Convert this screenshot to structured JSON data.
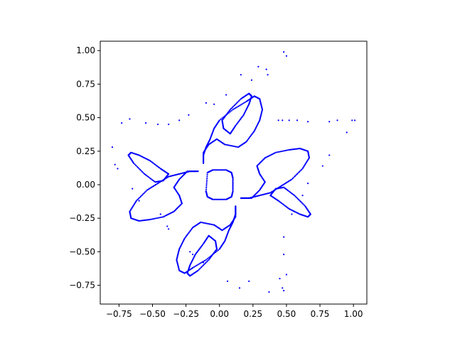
{
  "chart_data": {
    "type": "scatter",
    "title": "",
    "xlabel": "",
    "ylabel": "",
    "xlim": [
      -0.89,
      1.1
    ],
    "ylim": [
      -0.89,
      1.07
    ],
    "grid": false,
    "legend": "none",
    "marker_color": "#0000ff",
    "x_ticks": [
      -0.75,
      -0.5,
      -0.25,
      0.0,
      0.25,
      0.5,
      0.75,
      1.0
    ],
    "x_tick_labels": [
      "−0.75",
      "−0.50",
      "−0.25",
      "0.00",
      "0.25",
      "0.50",
      "0.75",
      "1.00"
    ],
    "y_ticks": [
      -0.75,
      -0.5,
      -0.25,
      0.0,
      0.25,
      0.5,
      0.75,
      1.0
    ],
    "y_tick_labels": [
      "−0.75",
      "−0.50",
      "−0.25",
      "0.00",
      "0.25",
      "0.50",
      "0.75",
      "1.00"
    ],
    "curves": [
      {
        "kind": "loop",
        "points": [
          [
            -0.1,
            -0.05
          ],
          [
            -0.09,
            0.09
          ],
          [
            -0.05,
            0.11
          ],
          [
            0.05,
            0.11
          ],
          [
            0.09,
            0.09
          ],
          [
            0.1,
            0.05
          ],
          [
            0.1,
            -0.05
          ],
          [
            0.09,
            -0.09
          ],
          [
            0.05,
            -0.11
          ],
          [
            -0.05,
            -0.11
          ],
          [
            -0.09,
            -0.09
          ],
          [
            -0.1,
            -0.05
          ]
        ]
      },
      {
        "kind": "loop",
        "points": [
          [
            -0.12,
            0.16
          ],
          [
            -0.12,
            0.24
          ],
          [
            -0.08,
            0.3
          ],
          [
            -0.02,
            0.34
          ],
          [
            0.04,
            0.3
          ],
          [
            0.14,
            0.28
          ],
          [
            0.2,
            0.32
          ],
          [
            0.26,
            0.4
          ],
          [
            0.3,
            0.48
          ],
          [
            0.32,
            0.56
          ],
          [
            0.3,
            0.64
          ],
          [
            0.26,
            0.66
          ],
          [
            0.2,
            0.62
          ],
          [
            0.1,
            0.56
          ],
          [
            0.0,
            0.48
          ],
          [
            -0.04,
            0.42
          ],
          [
            -0.07,
            0.34
          ],
          [
            -0.1,
            0.28
          ],
          [
            -0.12,
            0.22
          ]
        ]
      },
      {
        "kind": "loop",
        "points": [
          [
            0.16,
            -0.1
          ],
          [
            0.24,
            -0.1
          ],
          [
            0.3,
            -0.04
          ],
          [
            0.34,
            0.02
          ],
          [
            0.3,
            0.08
          ],
          [
            0.28,
            0.14
          ],
          [
            0.34,
            0.2
          ],
          [
            0.42,
            0.24
          ],
          [
            0.52,
            0.26
          ],
          [
            0.6,
            0.27
          ],
          [
            0.66,
            0.25
          ],
          [
            0.67,
            0.2
          ],
          [
            0.62,
            0.12
          ],
          [
            0.54,
            0.04
          ],
          [
            0.46,
            -0.01
          ],
          [
            0.38,
            -0.06
          ],
          [
            0.3,
            -0.08
          ],
          [
            0.22,
            -0.1
          ]
        ]
      },
      {
        "kind": "loop",
        "points": [
          [
            0.12,
            -0.16
          ],
          [
            0.12,
            -0.24
          ],
          [
            0.08,
            -0.3
          ],
          [
            0.02,
            -0.34
          ],
          [
            -0.04,
            -0.3
          ],
          [
            -0.14,
            -0.28
          ],
          [
            -0.2,
            -0.32
          ],
          [
            -0.26,
            -0.4
          ],
          [
            -0.3,
            -0.48
          ],
          [
            -0.32,
            -0.56
          ],
          [
            -0.3,
            -0.64
          ],
          [
            -0.26,
            -0.66
          ],
          [
            -0.2,
            -0.62
          ],
          [
            -0.1,
            -0.56
          ],
          [
            0.0,
            -0.48
          ],
          [
            0.04,
            -0.42
          ],
          [
            0.07,
            -0.34
          ],
          [
            0.1,
            -0.28
          ],
          [
            0.12,
            -0.22
          ]
        ]
      },
      {
        "kind": "loop",
        "points": [
          [
            -0.16,
            0.1
          ],
          [
            -0.24,
            0.1
          ],
          [
            -0.3,
            0.04
          ],
          [
            -0.34,
            -0.02
          ],
          [
            -0.3,
            -0.08
          ],
          [
            -0.28,
            -0.14
          ],
          [
            -0.34,
            -0.2
          ],
          [
            -0.42,
            -0.24
          ],
          [
            -0.52,
            -0.26
          ],
          [
            -0.6,
            -0.27
          ],
          [
            -0.66,
            -0.25
          ],
          [
            -0.67,
            -0.2
          ],
          [
            -0.62,
            -0.12
          ],
          [
            -0.54,
            -0.04
          ],
          [
            -0.46,
            0.01
          ],
          [
            -0.38,
            0.06
          ],
          [
            -0.3,
            0.08
          ],
          [
            -0.22,
            0.1
          ]
        ]
      },
      {
        "kind": "loop",
        "points": [
          [
            0.08,
            0.38
          ],
          [
            0.12,
            0.44
          ],
          [
            0.18,
            0.52
          ],
          [
            0.22,
            0.6
          ],
          [
            0.24,
            0.66
          ],
          [
            0.22,
            0.68
          ],
          [
            0.16,
            0.64
          ],
          [
            0.08,
            0.56
          ],
          [
            0.02,
            0.48
          ],
          [
            0.03,
            0.42
          ]
        ]
      },
      {
        "kind": "loop",
        "points": [
          [
            0.38,
            -0.08
          ],
          [
            0.44,
            -0.12
          ],
          [
            0.52,
            -0.18
          ],
          [
            0.6,
            -0.22
          ],
          [
            0.66,
            -0.24
          ],
          [
            0.68,
            -0.22
          ],
          [
            0.64,
            -0.16
          ],
          [
            0.56,
            -0.08
          ],
          [
            0.48,
            -0.02
          ],
          [
            0.42,
            -0.03
          ]
        ]
      },
      {
        "kind": "loop",
        "points": [
          [
            -0.08,
            -0.38
          ],
          [
            -0.12,
            -0.44
          ],
          [
            -0.18,
            -0.52
          ],
          [
            -0.22,
            -0.6
          ],
          [
            -0.24,
            -0.66
          ],
          [
            -0.22,
            -0.68
          ],
          [
            -0.16,
            -0.64
          ],
          [
            -0.08,
            -0.56
          ],
          [
            -0.02,
            -0.48
          ],
          [
            -0.03,
            -0.42
          ]
        ]
      },
      {
        "kind": "loop",
        "points": [
          [
            -0.38,
            0.08
          ],
          [
            -0.44,
            0.12
          ],
          [
            -0.52,
            0.18
          ],
          [
            -0.6,
            0.22
          ],
          [
            -0.66,
            0.24
          ],
          [
            -0.68,
            0.22
          ],
          [
            -0.64,
            0.16
          ],
          [
            -0.56,
            0.08
          ],
          [
            -0.48,
            0.02
          ],
          [
            -0.42,
            0.03
          ]
        ]
      }
    ],
    "scatter_points": [
      [
        0.48,
        0.99
      ],
      [
        0.5,
        0.96
      ],
      [
        0.29,
        0.88
      ],
      [
        0.47,
        0.48
      ],
      [
        0.52,
        0.48
      ],
      [
        0.58,
        0.48
      ],
      [
        0.66,
        0.47
      ],
      [
        0.82,
        0.47
      ],
      [
        0.88,
        0.48
      ],
      [
        0.95,
        0.39
      ],
      [
        0.99,
        0.48
      ],
      [
        1.01,
        0.48
      ],
      [
        -0.67,
        0.49
      ],
      [
        -0.73,
        0.46
      ],
      [
        -0.55,
        0.46
      ],
      [
        -0.46,
        0.45
      ],
      [
        -0.38,
        0.45
      ],
      [
        -0.3,
        0.48
      ],
      [
        -0.23,
        0.52
      ],
      [
        -0.8,
        0.28
      ],
      [
        -0.78,
        0.15
      ],
      [
        -0.76,
        0.12
      ],
      [
        -0.65,
        -0.03
      ],
      [
        -0.6,
        -0.12
      ],
      [
        -0.44,
        -0.22
      ],
      [
        -0.39,
        -0.31
      ],
      [
        -0.38,
        -0.33
      ],
      [
        -0.22,
        -0.5
      ],
      [
        -0.2,
        -0.52
      ],
      [
        -0.12,
        -0.58
      ],
      [
        0.06,
        -0.72
      ],
      [
        0.15,
        -0.77
      ],
      [
        0.22,
        -0.72
      ],
      [
        0.37,
        -0.8
      ],
      [
        0.45,
        -0.7
      ],
      [
        0.48,
        -0.52
      ],
      [
        0.48,
        -0.39
      ],
      [
        0.5,
        -0.67
      ],
      [
        0.47,
        -0.77
      ],
      [
        0.48,
        -0.79
      ],
      [
        0.54,
        -0.22
      ],
      [
        0.56,
        -0.2
      ],
      [
        0.62,
        -0.08
      ],
      [
        0.66,
        0.01
      ],
      [
        0.77,
        0.14
      ],
      [
        0.82,
        0.22
      ],
      [
        0.16,
        0.82
      ],
      [
        0.24,
        0.78
      ],
      [
        0.36,
        0.82
      ],
      [
        0.35,
        0.86
      ],
      [
        0.44,
        0.48
      ],
      [
        0.05,
        0.67
      ],
      [
        -0.04,
        0.6
      ],
      [
        -0.1,
        0.61
      ]
    ]
  }
}
